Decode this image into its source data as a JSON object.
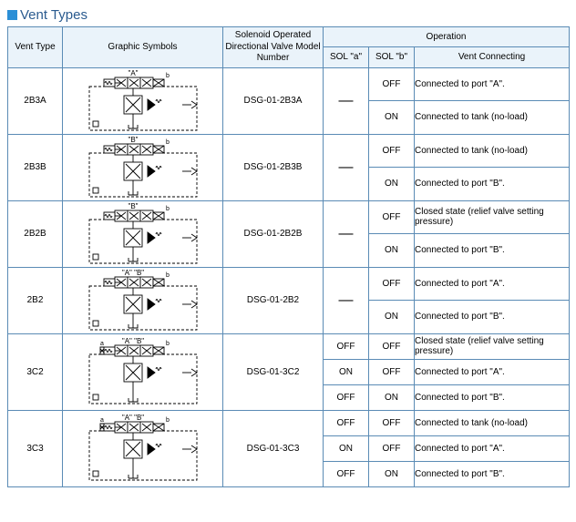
{
  "title": "Vent Types",
  "headers": {
    "vent_type": "Vent Type",
    "graphic": "Graphic Symbols",
    "model": "Solenoid Operated Directional Valve Model Number",
    "operation": "Operation",
    "sol_a": "SOL \"a\"",
    "sol_b": "SOL \"b\"",
    "vent_conn": "Vent Connecting"
  },
  "labels": {
    "dash": "—",
    "on": "ON",
    "off": "OFF"
  },
  "connections": {
    "port_a": "Connected to port \"A\".",
    "port_b": "Connected to port \"B\".",
    "tank": "Connected to tank (no-load)",
    "closed": "Closed state (relief valve setting pressure)"
  },
  "diagram_labels": {
    "a": "\"A\"",
    "b": "\"B\"",
    "ab": "\"A\" \"B\"",
    "sub_a": "a",
    "sub_b": "b"
  },
  "rows": [
    {
      "type": "2B3A",
      "model": "DSG-01-2B3A",
      "top_label": "a",
      "ops": [
        {
          "a": "dash",
          "b": "off",
          "conn": "port_a"
        },
        {
          "a": "",
          "b": "on",
          "conn": "tank"
        }
      ]
    },
    {
      "type": "2B3B",
      "model": "DSG-01-2B3B",
      "top_label": "b",
      "ops": [
        {
          "a": "dash",
          "b": "off",
          "conn": "tank"
        },
        {
          "a": "",
          "b": "on",
          "conn": "port_b"
        }
      ]
    },
    {
      "type": "2B2B",
      "model": "DSG-01-2B2B",
      "top_label": "b",
      "ops": [
        {
          "a": "dash",
          "b": "off",
          "conn": "closed"
        },
        {
          "a": "",
          "b": "on",
          "conn": "port_b"
        }
      ]
    },
    {
      "type": "2B2",
      "model": "DSG-01-2B2",
      "top_label": "ab",
      "ops": [
        {
          "a": "dash",
          "b": "off",
          "conn": "port_a"
        },
        {
          "a": "",
          "b": "on",
          "conn": "port_b"
        }
      ]
    },
    {
      "type": "3C2",
      "model": "DSG-01-3C2",
      "top_label": "ab",
      "double": true,
      "ops": [
        {
          "a": "off",
          "b": "off",
          "conn": "closed"
        },
        {
          "a": "on",
          "b": "off",
          "conn": "port_a"
        },
        {
          "a": "off",
          "b": "on",
          "conn": "port_b"
        }
      ]
    },
    {
      "type": "3C3",
      "model": "DSG-01-3C3",
      "top_label": "ab",
      "double": true,
      "ops": [
        {
          "a": "off",
          "b": "off",
          "conn": "tank"
        },
        {
          "a": "on",
          "b": "off",
          "conn": "port_a"
        },
        {
          "a": "off",
          "b": "on",
          "conn": "port_b"
        }
      ]
    }
  ],
  "colors": {
    "accent": "#2b8fd6",
    "header_bg": "#eaf3fa",
    "border": "#5a8bb5"
  }
}
